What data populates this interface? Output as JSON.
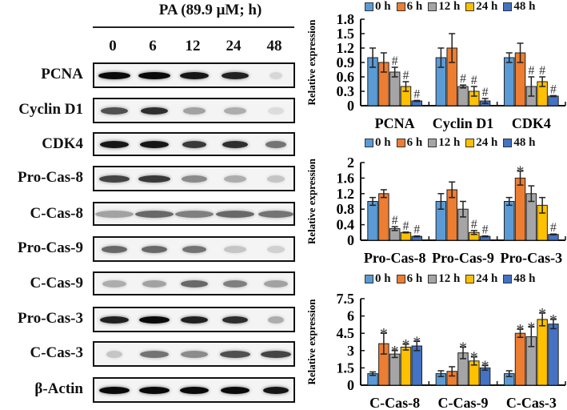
{
  "blot": {
    "treatment_label": "PA (89.9 μM; h)",
    "lanes": [
      "0",
      "6",
      "12",
      "24",
      "48"
    ],
    "proteins": [
      "PCNA",
      "Cyclin D1",
      "CDK4",
      "Pro-Cas-8",
      "C-Cas-8",
      "Pro-Cas-9",
      "C-Cas-9",
      "Pro-Cas-3",
      "C-Cas-3",
      "β-Actin"
    ]
  },
  "colors": {
    "0 h": "#5b9bd5",
    "6 h": "#ed7d31",
    "12 h": "#a5a5a5",
    "24 h": "#ffc000",
    "48 h": "#4472c4"
  },
  "chart_data": [
    {
      "type": "bar",
      "title": "",
      "ylabel": "Relative expression",
      "xlabel": "",
      "ylim": [
        0,
        1.8
      ],
      "yticks": [
        "0",
        "0.3",
        "0.6",
        "0.9",
        "1.2",
        "1.5",
        "1.8"
      ],
      "legend": [
        "0 h",
        "6 h",
        "12 h",
        "24 h",
        "48 h"
      ],
      "legend_position": "top",
      "grid": false,
      "categories": [
        "PCNA",
        "Cyclin D1",
        "CDK4"
      ],
      "series": [
        {
          "name": "0 h",
          "values": [
            1.0,
            1.0,
            1.0
          ],
          "errors": [
            0.2,
            0.2,
            0.1
          ],
          "marks": [
            "",
            "",
            ""
          ]
        },
        {
          "name": "6 h",
          "values": [
            0.9,
            1.2,
            1.1
          ],
          "errors": [
            0.2,
            0.3,
            0.2
          ],
          "marks": [
            "",
            "",
            ""
          ]
        },
        {
          "name": "12 h",
          "values": [
            0.7,
            0.4,
            0.4
          ],
          "errors": [
            0.1,
            0.03,
            0.2
          ],
          "marks": [
            "#",
            "#",
            "#"
          ]
        },
        {
          "name": "24 h",
          "values": [
            0.4,
            0.3,
            0.5
          ],
          "errors": [
            0.1,
            0.1,
            0.1
          ],
          "marks": [
            "#",
            "#",
            "#"
          ]
        },
        {
          "name": "48 h",
          "values": [
            0.1,
            0.1,
            0.2
          ],
          "errors": [
            0.01,
            0.05,
            0.01
          ],
          "marks": [
            "#",
            "#",
            "#"
          ]
        }
      ]
    },
    {
      "type": "bar",
      "title": "",
      "ylabel": "Relative expression",
      "xlabel": "",
      "ylim": [
        0,
        2
      ],
      "yticks": [
        "0",
        "0.4",
        "0.8",
        "1.2",
        "1.6",
        "2"
      ],
      "legend": [
        "0 h",
        "6 h",
        "12 h",
        "24 h",
        "48 h"
      ],
      "legend_position": "top",
      "grid": false,
      "categories": [
        "Pro-Cas-8",
        "Pro-Cas-9",
        "Pro-Cas-3"
      ],
      "series": [
        {
          "name": "0 h",
          "values": [
            1.0,
            1.0,
            1.0
          ],
          "errors": [
            0.1,
            0.2,
            0.1
          ],
          "marks": [
            "",
            "",
            ""
          ]
        },
        {
          "name": "6 h",
          "values": [
            1.2,
            1.3,
            1.6
          ],
          "errors": [
            0.1,
            0.2,
            0.18
          ],
          "marks": [
            "",
            "",
            "*"
          ]
        },
        {
          "name": "12 h",
          "values": [
            0.3,
            0.8,
            1.2
          ],
          "errors": [
            0.05,
            0.2,
            0.2
          ],
          "marks": [
            "#",
            "",
            ""
          ]
        },
        {
          "name": "24 h",
          "values": [
            0.2,
            0.2,
            0.9
          ],
          "errors": [
            0.01,
            0.05,
            0.2
          ],
          "marks": [
            "#",
            "#",
            ""
          ]
        },
        {
          "name": "48 h",
          "values": [
            0.1,
            0.1,
            0.15
          ],
          "errors": [
            0.01,
            0.01,
            0.01
          ],
          "marks": [
            "#",
            "#",
            "#"
          ]
        }
      ]
    },
    {
      "type": "bar",
      "title": "",
      "ylabel": "Relative expression",
      "xlabel": "",
      "ylim": [
        0,
        7.5
      ],
      "yticks": [
        "0",
        "1.5",
        "3",
        "4.5",
        "6",
        "7.5"
      ],
      "legend": [
        "0 h",
        "6 h",
        "12 h",
        "24 h",
        "48 h"
      ],
      "legend_position": "top",
      "grid": false,
      "categories": [
        "C-Cas-8",
        "C-Cas-9",
        "C-Cas-3"
      ],
      "series": [
        {
          "name": "0 h",
          "values": [
            1.0,
            1.0,
            1.0
          ],
          "errors": [
            0.15,
            0.25,
            0.25
          ],
          "marks": [
            "",
            "",
            ""
          ]
        },
        {
          "name": "6 h",
          "values": [
            3.6,
            1.2,
            4.5
          ],
          "errors": [
            0.9,
            0.4,
            0.35
          ],
          "marks": [
            "*",
            "",
            "*"
          ]
        },
        {
          "name": "12 h",
          "values": [
            2.7,
            2.8,
            4.2
          ],
          "errors": [
            0.3,
            0.5,
            0.85
          ],
          "marks": [
            "*",
            "*",
            "*"
          ]
        },
        {
          "name": "24 h",
          "values": [
            3.3,
            2.1,
            5.7
          ],
          "errors": [
            0.25,
            0.35,
            0.55
          ],
          "marks": [
            "*",
            "*",
            "*"
          ]
        },
        {
          "name": "48 h",
          "values": [
            3.4,
            1.5,
            5.3
          ],
          "errors": [
            0.4,
            0.2,
            0.4
          ],
          "marks": [
            "*",
            "*",
            "*"
          ]
        }
      ]
    }
  ]
}
